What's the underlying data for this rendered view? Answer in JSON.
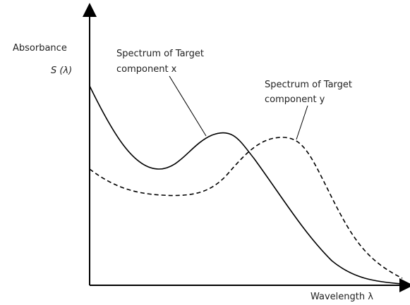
{
  "y_axis": {
    "label": "Absorbance",
    "symbol": "S (λ)"
  },
  "x_axis": {
    "label": "Wavelength λ"
  },
  "annotations": [
    {
      "lines": [
        "Spectrum of Target",
        "component x"
      ]
    },
    {
      "lines": [
        "Spectrum of Target",
        "component y"
      ]
    }
  ]
}
